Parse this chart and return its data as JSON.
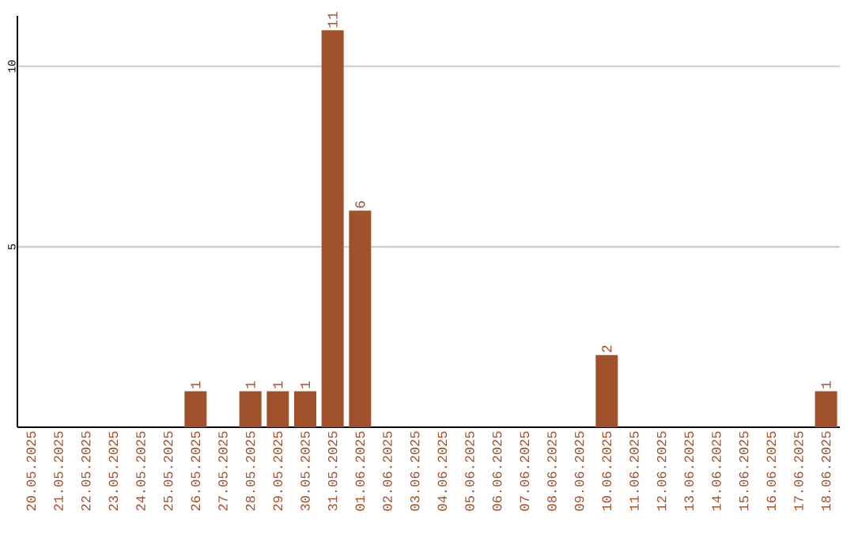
{
  "chart_data": {
    "type": "bar",
    "categories": [
      "20.05.2025",
      "21.05.2025",
      "22.05.2025",
      "23.05.2025",
      "24.05.2025",
      "25.05.2025",
      "26.05.2025",
      "27.05.2025",
      "28.05.2025",
      "29.05.2025",
      "30.05.2025",
      "31.05.2025",
      "01.06.2025",
      "02.06.2025",
      "03.06.2025",
      "04.06.2025",
      "05.06.2025",
      "06.06.2025",
      "07.06.2025",
      "08.06.2025",
      "09.06.2025",
      "10.06.2025",
      "11.06.2025",
      "12.06.2025",
      "13.06.2025",
      "14.06.2025",
      "15.06.2025",
      "16.06.2025",
      "17.06.2025",
      "18.06.2025"
    ],
    "values": [
      0,
      0,
      0,
      0,
      0,
      0,
      1,
      0,
      1,
      1,
      1,
      11,
      6,
      0,
      0,
      0,
      0,
      0,
      0,
      0,
      0,
      2,
      0,
      0,
      0,
      0,
      0,
      0,
      0,
      1
    ],
    "value_labels": [
      null,
      null,
      null,
      null,
      null,
      null,
      "1",
      null,
      "1",
      "1",
      "1",
      "11",
      "6",
      null,
      null,
      null,
      null,
      null,
      null,
      null,
      null,
      "2",
      null,
      null,
      null,
      null,
      null,
      null,
      null,
      "1"
    ],
    "color": "#a0522d",
    "ylim": [
      0,
      11.4
    ],
    "yticks": [
      5,
      10
    ],
    "grid": "y"
  }
}
